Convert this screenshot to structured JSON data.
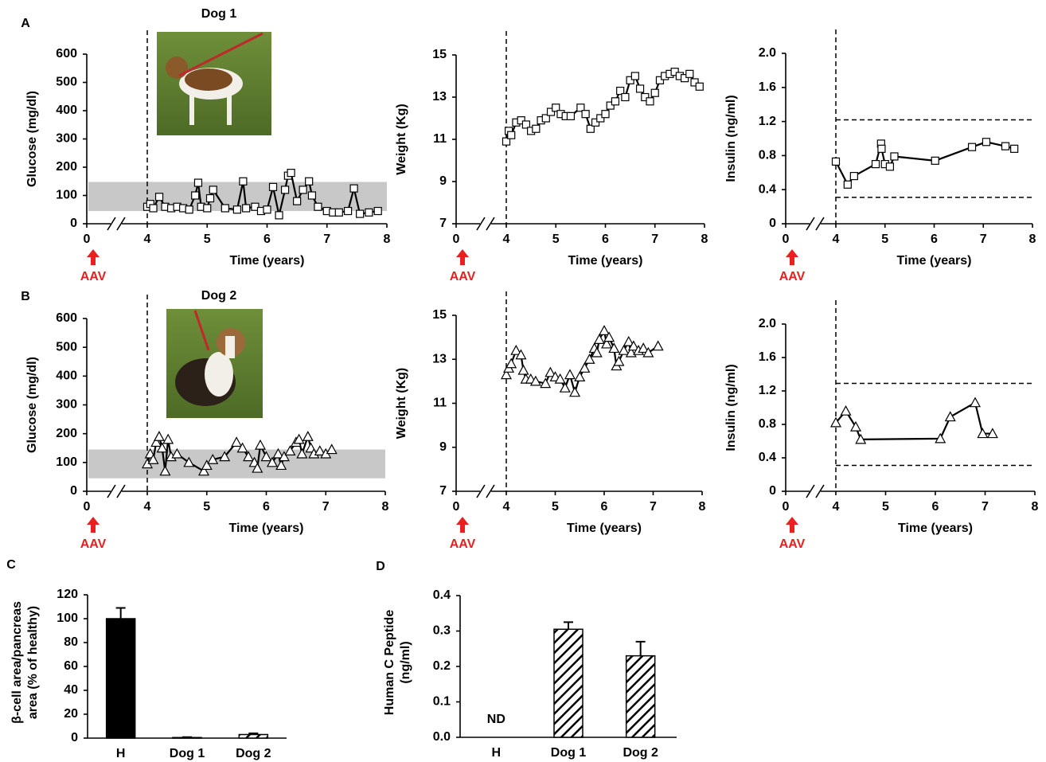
{
  "chart_data": [
    {
      "type": "line",
      "panel_label": "A",
      "title": "Dog 1",
      "ylabel": "Glucose (mg/dl)",
      "xlabel": "Time (years)",
      "x": [
        4.0,
        4.05,
        4.1,
        4.2,
        4.3,
        4.4,
        4.5,
        4.6,
        4.7,
        4.8,
        4.85,
        4.9,
        5.0,
        5.05,
        5.1,
        5.3,
        5.5,
        5.6,
        5.65,
        5.8,
        5.9,
        6.0,
        6.1,
        6.2,
        6.3,
        6.35,
        6.4,
        6.5,
        6.6,
        6.7,
        6.75,
        6.85,
        7.0,
        7.1,
        7.2,
        7.35,
        7.45,
        7.55,
        7.7,
        7.85
      ],
      "values": [
        60,
        70,
        55,
        95,
        60,
        55,
        60,
        55,
        50,
        100,
        145,
        60,
        55,
        90,
        120,
        55,
        50,
        150,
        55,
        60,
        45,
        50,
        130,
        30,
        120,
        170,
        180,
        80,
        120,
        150,
        100,
        60,
        45,
        40,
        40,
        45,
        125,
        35,
        40,
        45
      ],
      "marker": "square",
      "color": "#000000",
      "xlim": [
        0,
        8
      ],
      "xticks": [
        0,
        4,
        5,
        6,
        7,
        8
      ],
      "x_break": [
        0,
        4
      ],
      "ylim": [
        0,
        600
      ],
      "yticks": [
        0,
        100,
        200,
        300,
        400,
        500,
        600
      ],
      "normal_range": [
        45,
        148
      ],
      "reference_x": 4,
      "annotation": {
        "text": "AAV",
        "x": 0
      }
    },
    {
      "type": "line",
      "ylabel": "Weight (Kg)",
      "xlabel": "Time (years)",
      "x": [
        4.0,
        4.05,
        4.1,
        4.2,
        4.3,
        4.4,
        4.5,
        4.6,
        4.7,
        4.8,
        4.9,
        5.0,
        5.1,
        5.2,
        5.3,
        5.5,
        5.6,
        5.7,
        5.8,
        5.9,
        6.0,
        6.1,
        6.2,
        6.3,
        6.4,
        6.5,
        6.6,
        6.7,
        6.8,
        6.9,
        7.0,
        7.1,
        7.2,
        7.3,
        7.4,
        7.5,
        7.6,
        7.7,
        7.8,
        7.9
      ],
      "values": [
        10.9,
        11.4,
        11.2,
        11.8,
        11.9,
        11.7,
        11.4,
        11.5,
        11.9,
        12.0,
        12.3,
        12.5,
        12.2,
        12.1,
        12.1,
        12.5,
        12.2,
        11.5,
        11.8,
        12.0,
        12.2,
        12.6,
        12.8,
        13.3,
        13.0,
        13.8,
        14.0,
        13.4,
        13.0,
        12.8,
        13.2,
        13.8,
        14.0,
        14.1,
        14.2,
        14.0,
        13.9,
        14.1,
        13.7,
        13.5
      ],
      "marker": "square",
      "color": "#000000",
      "xlim": [
        0,
        8
      ],
      "xticks": [
        0,
        4,
        5,
        6,
        7,
        8
      ],
      "x_break": [
        0,
        4
      ],
      "ylim": [
        7,
        15
      ],
      "yticks": [
        7,
        9,
        11,
        13,
        15
      ],
      "reference_x": 4,
      "annotation": {
        "text": "AAV",
        "x": 0
      }
    },
    {
      "type": "line",
      "ylabel": "Insulin (ng/ml)",
      "xlabel": "Time (years)",
      "x": [
        4.0,
        4.24,
        4.37,
        4.81,
        4.92,
        4.93,
        5.0,
        5.1,
        5.19,
        6.02,
        6.77,
        7.06,
        7.45,
        7.63
      ],
      "values": [
        0.73,
        0.46,
        0.56,
        0.7,
        0.94,
        0.88,
        0.7,
        0.67,
        0.79,
        0.74,
        0.9,
        0.96,
        0.91,
        0.88
      ],
      "marker": "square",
      "color": "#000000",
      "xlim": [
        0,
        8
      ],
      "xticks": [
        0,
        4,
        5,
        6,
        7,
        8
      ],
      "x_break": [
        0,
        4
      ],
      "ylim": [
        0,
        2
      ],
      "yticks": [
        0,
        0.4,
        0.8,
        1.2,
        1.6,
        {
          "value": 2,
          "label": "2.0"
        }
      ],
      "reference_x": 4,
      "reference_y": [
        0.31,
        1.22
      ],
      "annotation": {
        "text": "AAV",
        "x": 0
      }
    },
    {
      "type": "line",
      "panel_label": "B",
      "title": "Dog 2",
      "ylabel": "Glucose (mg/dl)",
      "xlabel": "Time (years)",
      "x": [
        4.0,
        4.05,
        4.1,
        4.15,
        4.2,
        4.25,
        4.3,
        4.35,
        4.4,
        4.5,
        4.7,
        4.95,
        5.0,
        5.1,
        5.3,
        5.5,
        5.6,
        5.7,
        5.8,
        5.85,
        5.9,
        6.0,
        6.1,
        6.2,
        6.25,
        6.3,
        6.4,
        6.5,
        6.55,
        6.6,
        6.7,
        6.75,
        6.8,
        6.9,
        7.0,
        7.1
      ],
      "values": [
        95,
        130,
        110,
        170,
        190,
        150,
        70,
        180,
        120,
        130,
        100,
        70,
        90,
        110,
        120,
        170,
        150,
        120,
        100,
        80,
        160,
        120,
        100,
        130,
        90,
        120,
        140,
        170,
        180,
        130,
        190,
        150,
        130,
        140,
        130,
        145
      ],
      "marker": "triangle",
      "color": "#000000",
      "xlim": [
        0,
        8
      ],
      "xticks": [
        0,
        4,
        5,
        6,
        7,
        8
      ],
      "x_break": [
        0,
        4
      ],
      "ylim": [
        0,
        600
      ],
      "yticks": [
        0,
        100,
        200,
        300,
        400,
        500,
        600
      ],
      "normal_range": [
        45,
        145
      ],
      "reference_x": 4,
      "annotation": {
        "text": "AAV",
        "x": 0
      }
    },
    {
      "type": "line",
      "ylabel": "Weight (Kg)",
      "xlabel": "Time (years)",
      "x": [
        4.0,
        4.05,
        4.1,
        4.2,
        4.3,
        4.35,
        4.4,
        4.5,
        4.6,
        4.8,
        4.9,
        5.0,
        5.1,
        5.2,
        5.3,
        5.4,
        5.5,
        5.6,
        5.7,
        5.8,
        5.85,
        5.9,
        6.0,
        6.05,
        6.1,
        6.2,
        6.25,
        6.3,
        6.4,
        6.5,
        6.55,
        6.6,
        6.7,
        6.8,
        6.9,
        7.1
      ],
      "values": [
        12.3,
        12.6,
        12.8,
        13.4,
        13.2,
        12.5,
        12.1,
        12.1,
        12.0,
        11.9,
        12.4,
        12.2,
        12.1,
        11.7,
        12.3,
        11.5,
        12.2,
        12.6,
        13.0,
        13.5,
        13.3,
        13.9,
        14.3,
        13.7,
        14.0,
        13.5,
        12.7,
        12.9,
        13.4,
        13.8,
        13.3,
        13.6,
        13.4,
        13.5,
        13.3,
        13.6
      ],
      "marker": "triangle",
      "color": "#000000",
      "xlim": [
        0,
        8
      ],
      "xticks": [
        0,
        4,
        5,
        6,
        7,
        8
      ],
      "x_break": [
        0,
        4
      ],
      "ylim": [
        7,
        15
      ],
      "yticks": [
        7,
        9,
        11,
        13,
        15
      ],
      "reference_x": 4,
      "annotation": {
        "text": "AAV",
        "x": 0
      }
    },
    {
      "type": "line",
      "ylabel": "Insulin (ng/ml)",
      "xlabel": "Time (years)",
      "x": [
        4.0,
        4.2,
        4.4,
        4.5,
        6.1,
        6.3,
        6.8,
        6.95,
        7.15
      ],
      "values": [
        0.82,
        0.96,
        0.77,
        0.62,
        0.63,
        0.89,
        1.06,
        0.69,
        0.69
      ],
      "marker": "triangle",
      "color": "#000000",
      "xlim": [
        0,
        8
      ],
      "xticks": [
        0,
        4,
        5,
        6,
        7,
        8
      ],
      "x_break": [
        0,
        4
      ],
      "ylim": [
        0,
        2
      ],
      "yticks": [
        0,
        0.4,
        0.8,
        1.2,
        1.6,
        {
          "value": 2,
          "label": "2.0"
        }
      ],
      "reference_x": 4,
      "reference_y": [
        0.31,
        1.29
      ],
      "annotation": {
        "text": "AAV",
        "x": 0
      }
    },
    {
      "type": "bar",
      "panel_label": "C",
      "ylabel": [
        "β-cell area/pancreas",
        "area (% of healthy)"
      ],
      "categories": [
        "H",
        "Dog 1",
        "Dog 2"
      ],
      "values": [
        100,
        0.5,
        3
      ],
      "errors": [
        9,
        0.3,
        1
      ],
      "fills": [
        "solid",
        "hatch",
        "hatch"
      ],
      "color": "#000000",
      "ylim": [
        0,
        120
      ],
      "yticks": [
        0,
        20,
        40,
        60,
        80,
        100,
        120
      ]
    },
    {
      "type": "bar",
      "panel_label": "D",
      "ylabel": [
        "Human C Peptide",
        "(ng/ml)"
      ],
      "categories": [
        "H",
        "Dog 1",
        "Dog 2"
      ],
      "values": [
        null,
        0.305,
        0.23
      ],
      "errors": [
        null,
        0.02,
        0.04
      ],
      "value_labels": [
        "ND",
        null,
        null
      ],
      "fills": [
        "solid",
        "hatch",
        "hatch"
      ],
      "color": "#000000",
      "ylim": [
        0,
        0.4
      ],
      "yticks": [
        {
          "value": 0,
          "label": "0.0"
        },
        0.1,
        0.2,
        0.3,
        0.4
      ]
    }
  ]
}
